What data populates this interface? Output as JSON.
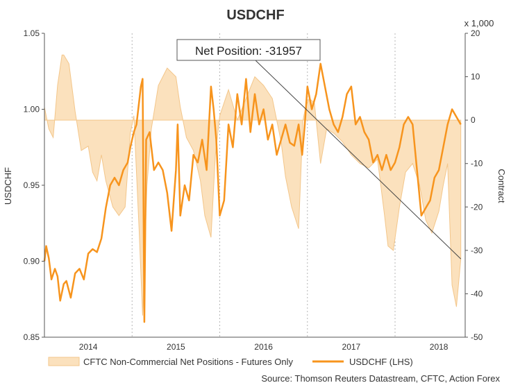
{
  "chart_data": {
    "type": "line",
    "title": "USDCHF",
    "ylabel": "USDCHF",
    "y2label": "Contract",
    "y2unit": "x 1,000",
    "ylim": [
      0.85,
      1.05
    ],
    "y2lim": [
      -50,
      20
    ],
    "yticks": [
      "1.05",
      "1.00",
      "0.95",
      "0.90",
      "0.85"
    ],
    "y2ticks": [
      "20",
      "10",
      "0",
      "-10",
      "-20",
      "-30",
      "-40",
      "-50"
    ],
    "xlim": [
      2013.5,
      2018.3
    ],
    "xticks": [
      {
        "label": "2014",
        "x": 2014.0
      },
      {
        "label": "2015",
        "x": 2015.0
      },
      {
        "label": "2016",
        "x": 2016.0
      },
      {
        "label": "2017",
        "x": 2017.0
      },
      {
        "label": "2018",
        "x": 2018.0
      }
    ],
    "gridlines_x": [
      2014.5,
      2015.5,
      2016.5,
      2017.5
    ],
    "annotation": {
      "text": "Net Position: -31957",
      "target_x": 2018.25,
      "target_y2": -31.957
    },
    "legend": [
      {
        "label": "CFTC Non-Commercial Net Positions - Futures Only",
        "kind": "area"
      },
      {
        "label": "USDCHF (LHS)",
        "kind": "line"
      }
    ],
    "source": "Source: Thomson Reuters Datastream, CFTC, Action Forex",
    "colors": {
      "line": "#f7941d",
      "area_fill": "#fbe1bd",
      "area_stroke": "#f3c68a",
      "grid": "#b5b5b5",
      "axis": "#555555"
    },
    "series": [
      {
        "name": "CFTC Non-Commercial Net Positions - Futures Only",
        "axis": "right",
        "x": [
          2013.5,
          2013.55,
          2013.6,
          2013.65,
          2013.7,
          2013.72,
          2013.78,
          2013.85,
          2013.92,
          2014.0,
          2014.05,
          2014.1,
          2014.15,
          2014.2,
          2014.28,
          2014.35,
          2014.42,
          2014.48,
          2014.52,
          2014.58,
          2014.62,
          2014.67,
          2014.72,
          2014.8,
          2014.9,
          2015.0,
          2015.05,
          2015.12,
          2015.2,
          2015.28,
          2015.33,
          2015.4,
          2015.45,
          2015.5,
          2015.6,
          2015.7,
          2015.8,
          2015.9,
          2016.0,
          2016.1,
          2016.2,
          2016.25,
          2016.32,
          2016.4,
          2016.45,
          2016.48,
          2016.52,
          2016.58,
          2016.65,
          2016.72,
          2016.8,
          2016.9,
          2017.0,
          2017.1,
          2017.2,
          2017.3,
          2017.38,
          2017.42,
          2017.48,
          2017.55,
          2017.62,
          2017.7,
          2017.78,
          2017.85,
          2017.92,
          2018.0,
          2018.05,
          2018.1,
          2018.15,
          2018.2,
          2018.25
        ],
        "values": [
          3,
          -2,
          -4,
          8,
          15,
          15,
          13,
          2,
          -7,
          -6,
          -12,
          -14,
          -8,
          -14,
          -20,
          -22,
          -20,
          -3,
          1,
          -25,
          -45,
          -15,
          -2,
          8,
          12,
          10,
          3,
          -4,
          -7,
          -14,
          -22,
          -27,
          -8,
          1,
          7,
          0,
          5,
          10,
          8,
          5,
          -5,
          -13,
          -20,
          -25,
          0,
          3,
          5,
          4,
          -10,
          -2,
          -3,
          -5,
          -8,
          -10,
          -11,
          -9,
          -22,
          -29,
          -30,
          -20,
          -12,
          -10,
          -15,
          -23,
          -26,
          -21,
          -15,
          -10,
          -38,
          -43,
          -32
        ]
      },
      {
        "name": "USDCHF (LHS)",
        "axis": "left",
        "x": [
          2013.5,
          2013.52,
          2013.55,
          2013.58,
          2013.62,
          2013.65,
          2013.68,
          2013.72,
          2013.75,
          2013.8,
          2013.85,
          2013.9,
          2013.95,
          2014.0,
          2014.05,
          2014.1,
          2014.15,
          2014.2,
          2014.25,
          2014.3,
          2014.35,
          2014.4,
          2014.45,
          2014.48,
          2014.52,
          2014.55,
          2014.6,
          2014.62,
          2014.64,
          2014.66,
          2014.7,
          2014.75,
          2014.8,
          2014.85,
          2014.9,
          2014.95,
          2015.0,
          2015.02,
          2015.05,
          2015.1,
          2015.15,
          2015.2,
          2015.25,
          2015.3,
          2015.35,
          2015.4,
          2015.43,
          2015.46,
          2015.5,
          2015.55,
          2015.6,
          2015.65,
          2015.7,
          2015.75,
          2015.8,
          2015.85,
          2015.9,
          2015.95,
          2016.0,
          2016.05,
          2016.1,
          2016.15,
          2016.2,
          2016.25,
          2016.3,
          2016.35,
          2016.4,
          2016.44,
          2016.47,
          2016.5,
          2016.55,
          2016.6,
          2016.65,
          2016.7,
          2016.75,
          2016.8,
          2016.85,
          2016.9,
          2016.95,
          2017.0,
          2017.05,
          2017.1,
          2017.15,
          2017.2,
          2017.25,
          2017.3,
          2017.35,
          2017.4,
          2017.45,
          2017.5,
          2017.55,
          2017.6,
          2017.65,
          2017.7,
          2017.75,
          2017.8,
          2017.85,
          2017.9,
          2017.95,
          2018.0,
          2018.05,
          2018.1,
          2018.15,
          2018.2,
          2018.25
        ],
        "values": [
          0.9,
          0.91,
          0.902,
          0.888,
          0.895,
          0.89,
          0.874,
          0.885,
          0.887,
          0.876,
          0.892,
          0.895,
          0.888,
          0.905,
          0.908,
          0.906,
          0.915,
          0.935,
          0.95,
          0.955,
          0.95,
          0.96,
          0.965,
          0.975,
          0.985,
          0.99,
          1.015,
          1.02,
          0.86,
          0.98,
          0.985,
          0.96,
          0.965,
          0.96,
          0.945,
          0.92,
          0.96,
          0.99,
          0.93,
          0.95,
          0.94,
          0.97,
          0.965,
          0.98,
          0.96,
          1.015,
          1.0,
          0.98,
          0.93,
          0.94,
          0.99,
          0.975,
          1.01,
          0.99,
          1.02,
          0.985,
          1.01,
          0.99,
          1.0,
          0.98,
          0.99,
          0.97,
          0.98,
          0.99,
          0.978,
          0.976,
          0.99,
          0.97,
          0.99,
          1.015,
          1.0,
          1.01,
          1.03,
          1.015,
          1.0,
          0.99,
          0.985,
          0.995,
          1.01,
          1.015,
          0.99,
          0.995,
          0.985,
          0.98,
          0.965,
          0.97,
          0.96,
          0.97,
          0.96,
          0.965,
          0.975,
          0.99,
          0.995,
          0.99,
          0.96,
          0.93,
          0.935,
          0.94,
          0.955,
          0.96,
          0.975,
          0.99,
          1.0,
          0.995,
          0.99
        ]
      }
    ]
  }
}
